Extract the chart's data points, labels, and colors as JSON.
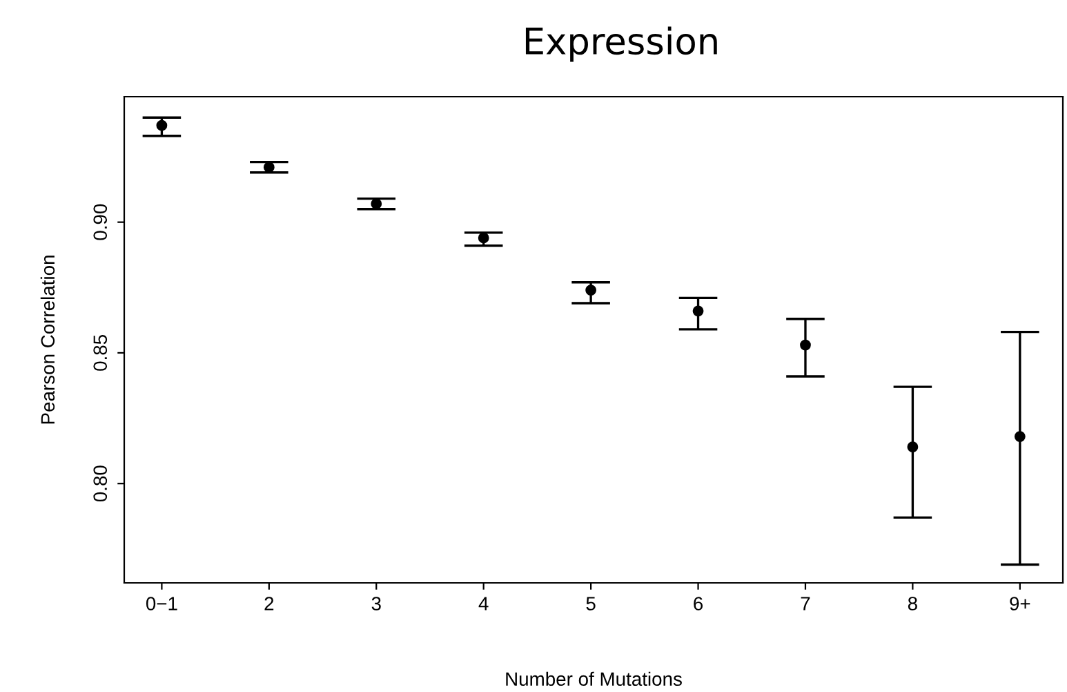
{
  "chart_data": {
    "type": "scatter",
    "title": "Expression",
    "xlabel": "Number of Mutations",
    "ylabel": "Pearson Correlation",
    "categories": [
      "0−1",
      "2",
      "3",
      "4",
      "5",
      "6",
      "7",
      "8",
      "9+"
    ],
    "values": [
      0.937,
      0.921,
      0.907,
      0.894,
      0.874,
      0.866,
      0.853,
      0.814,
      0.818
    ],
    "errors": [
      [
        0.933,
        0.94
      ],
      [
        0.919,
        0.923
      ],
      [
        0.905,
        0.909
      ],
      [
        0.891,
        0.896
      ],
      [
        0.869,
        0.877
      ],
      [
        0.859,
        0.871
      ],
      [
        0.841,
        0.863
      ],
      [
        0.787,
        0.837
      ],
      [
        0.769,
        0.858
      ]
    ],
    "color": "#000000",
    "marker": "circle",
    "grid": false,
    "legend": false,
    "ylim": [
      0.762,
      0.948
    ],
    "yticks": [
      {
        "value": 0.8,
        "label": "0.80"
      },
      {
        "value": 0.85,
        "label": "0.85"
      },
      {
        "value": 0.9,
        "label": "0.90"
      }
    ]
  }
}
